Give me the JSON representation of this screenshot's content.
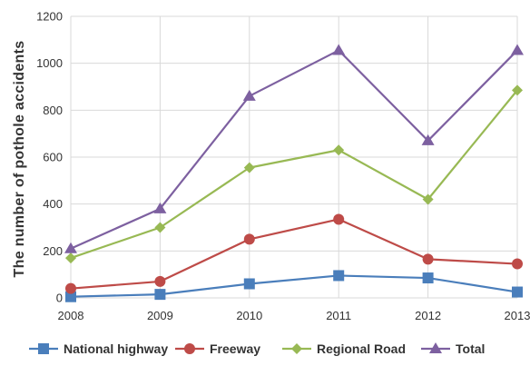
{
  "chart_data": {
    "type": "line",
    "title": "",
    "xlabel": "",
    "ylabel": "The number of pothole accidents",
    "x": [
      "2008",
      "2009",
      "2010",
      "2011",
      "2012",
      "2013"
    ],
    "ylim": [
      0,
      1200
    ],
    "yticks": [
      "0",
      "200",
      "400",
      "600",
      "800",
      "1000",
      "1200"
    ],
    "grid": true,
    "legend_position": "bottom",
    "series": [
      {
        "name": "National highway",
        "values": [
          5,
          15,
          60,
          95,
          85,
          25
        ],
        "color": "#4a7ebb",
        "marker": "square"
      },
      {
        "name": "Freeway",
        "values": [
          40,
          70,
          250,
          335,
          165,
          145
        ],
        "color": "#be4b48",
        "marker": "circle"
      },
      {
        "name": "Regional Road",
        "values": [
          170,
          300,
          555,
          630,
          420,
          885
        ],
        "color": "#98b954",
        "marker": "diamond"
      },
      {
        "name": "Total",
        "values": [
          210,
          380,
          860,
          1055,
          670,
          1055
        ],
        "color": "#7d60a0",
        "marker": "triangle"
      }
    ]
  }
}
